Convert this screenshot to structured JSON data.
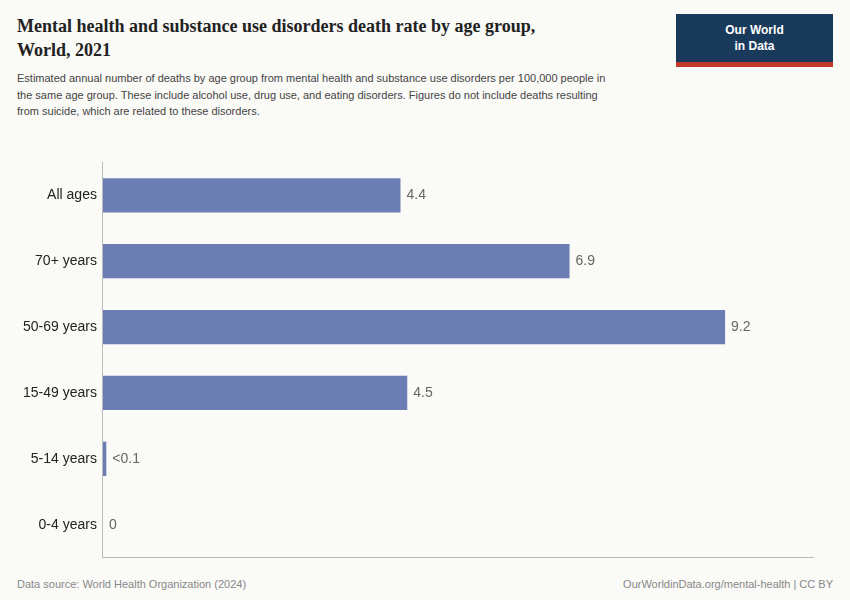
{
  "chart_data": {
    "type": "bar",
    "orientation": "horizontal",
    "title": "Mental health and substance use disorders death rate by age group,\nWorld, 2021",
    "subtitle": "Estimated annual number of deaths by age group from mental health and substance use disorders per 100,000 people in\nthe same age group. These include alcohol use, drug use, and eating disorders. Figures do not include deaths resulting\nfrom suicide, which are related to these disorders.",
    "categories": [
      "All ages",
      "70+ years",
      "50-69 years",
      "15-49 years",
      "5-14 years",
      "0-4 years"
    ],
    "values": [
      4.4,
      6.9,
      9.2,
      4.5,
      0.05,
      0.0
    ],
    "value_labels": [
      "4.4",
      "6.9",
      "9.2",
      "4.5",
      "<0.1",
      "0"
    ],
    "data_labels": true,
    "color": "#6b7db3",
    "xlim": [
      0,
      10.5
    ],
    "grid": false,
    "tick_labels": "y",
    "annotations": [
      "Data source: World Health Organization (2024)",
      "OurWorldinData.org/mental-health | CC BY",
      "Our World",
      "in Data"
    ]
  }
}
